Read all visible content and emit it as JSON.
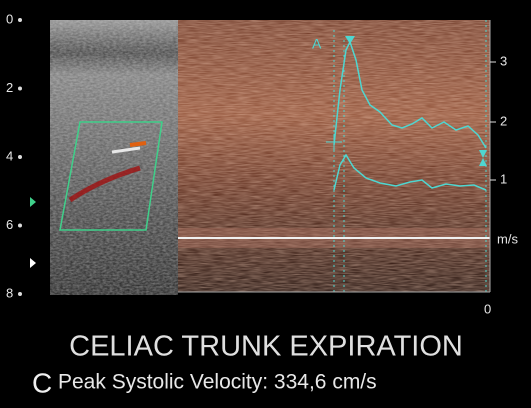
{
  "depth_scale": [
    0,
    2,
    4,
    6,
    8
  ],
  "velocity_scale": {
    "ticks": [
      3,
      2,
      1
    ],
    "unit": "m/s",
    "zero": 0
  },
  "marker": "A",
  "title": "CELIAC TRUNK EXPIRATION",
  "panel_label": "C",
  "caption": "Peak Systolic Velocity: 334,6 cm/s"
}
